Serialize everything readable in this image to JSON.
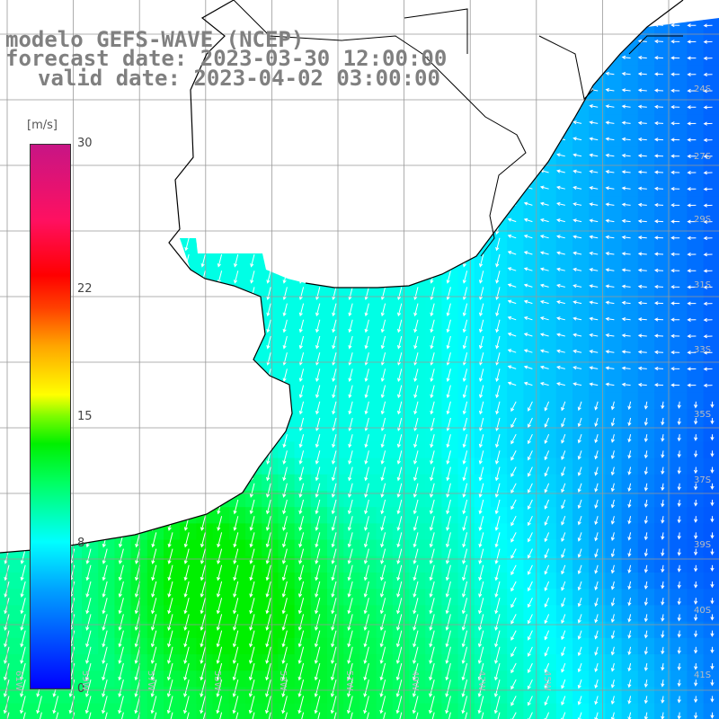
{
  "title": {
    "line1": "modelo GEFS-WAVE (NCEP)",
    "line2": "forecast date: 2023-03-30 12:00:00",
    "line3": "valid date: 2023-04-02 03:00:00"
  },
  "legend": {
    "unit": "[m/s]",
    "ticks": [
      "30",
      "22",
      "15",
      "8",
      "0"
    ],
    "tick_values": [
      30,
      22,
      15,
      8,
      0
    ]
  },
  "axes": {
    "lat_labels": [
      "24S",
      "27S",
      "29S",
      "31S",
      "33S",
      "35S",
      "37S",
      "39S",
      "40S",
      "41S"
    ],
    "lon_labels": [
      "61W",
      "59W",
      "57W",
      "55W",
      "53W",
      "51W",
      "49W",
      "47W",
      "45W"
    ]
  },
  "colors": {
    "scale_low": "#0000ff",
    "scale_mid": "#00ffff",
    "scale_high": "#c71585",
    "land": "#ffffff",
    "coast": "#000000",
    "grid": "#999999",
    "arrow": "#ffffff"
  }
}
